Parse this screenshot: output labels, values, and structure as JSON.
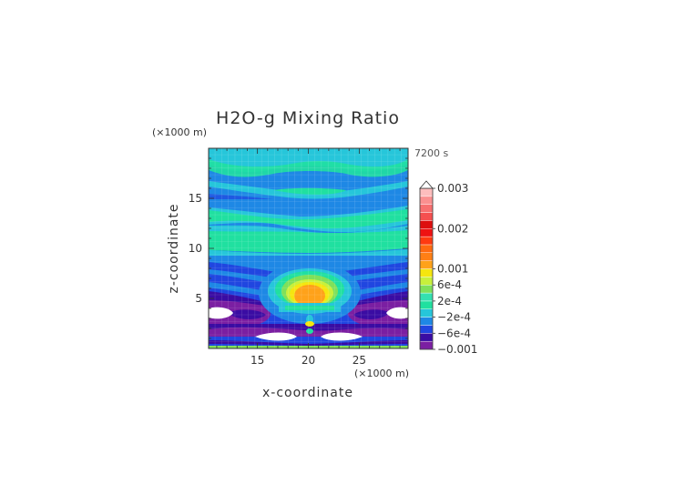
{
  "chart_data": {
    "type": "heatmap",
    "title": "H2O-g Mixing Ratio",
    "xlabel": "x-coordinate",
    "ylabel": "z-coordinate",
    "x_unit": "(×1000 m)",
    "y_unit": "(×1000 m)",
    "time_label": "7200 s",
    "xlim": [
      10.2,
      29.8
    ],
    "ylim": [
      0,
      20
    ],
    "x_ticks": [
      {
        "value": 15,
        "label": "15"
      },
      {
        "value": 20,
        "label": "20"
      },
      {
        "value": 25,
        "label": "25"
      }
    ],
    "y_ticks": [
      {
        "value": 5,
        "label": "5"
      },
      {
        "value": 10,
        "label": "10"
      },
      {
        "value": 15,
        "label": "15"
      }
    ],
    "colorbar": {
      "levels": [
        -0.001,
        -0.0008,
        -0.0006,
        -0.0004,
        -0.0002,
        0,
        0.0002,
        0.0004,
        0.0006,
        0.0008,
        0.001,
        0.0012,
        0.0014,
        0.0016,
        0.0018,
        0.002,
        0.0022,
        0.0024,
        0.0026,
        0.0028,
        0.003
      ],
      "colors": [
        "#7b1fa2",
        "#3a0ca3",
        "#2046e0",
        "#1e88e5",
        "#26c6da",
        "#20e0a0",
        "#33e0b0",
        "#7fe05a",
        "#c8f03c",
        "#f5e60f",
        "#ffa21a",
        "#ff7f15",
        "#ff6a10",
        "#ff3a10",
        "#ee1212",
        "#dd0f0f",
        "#f55050",
        "#f77070",
        "#fa9090",
        "#fdbdbd"
      ],
      "tick_labels": [
        {
          "value": 0.003,
          "label": "0.003"
        },
        {
          "value": 0.002,
          "label": "0.002"
        },
        {
          "value": 0.001,
          "label": "0.001"
        },
        {
          "value": 0.0006,
          "label": "6e-4"
        },
        {
          "value": 0.0002,
          "label": "2e-4"
        },
        {
          "value": -0.0002,
          "label": "−2e-4"
        },
        {
          "value": -0.0006,
          "label": "−6e-4"
        },
        {
          "value": -0.001,
          "label": "−0.001"
        }
      ]
    }
  }
}
